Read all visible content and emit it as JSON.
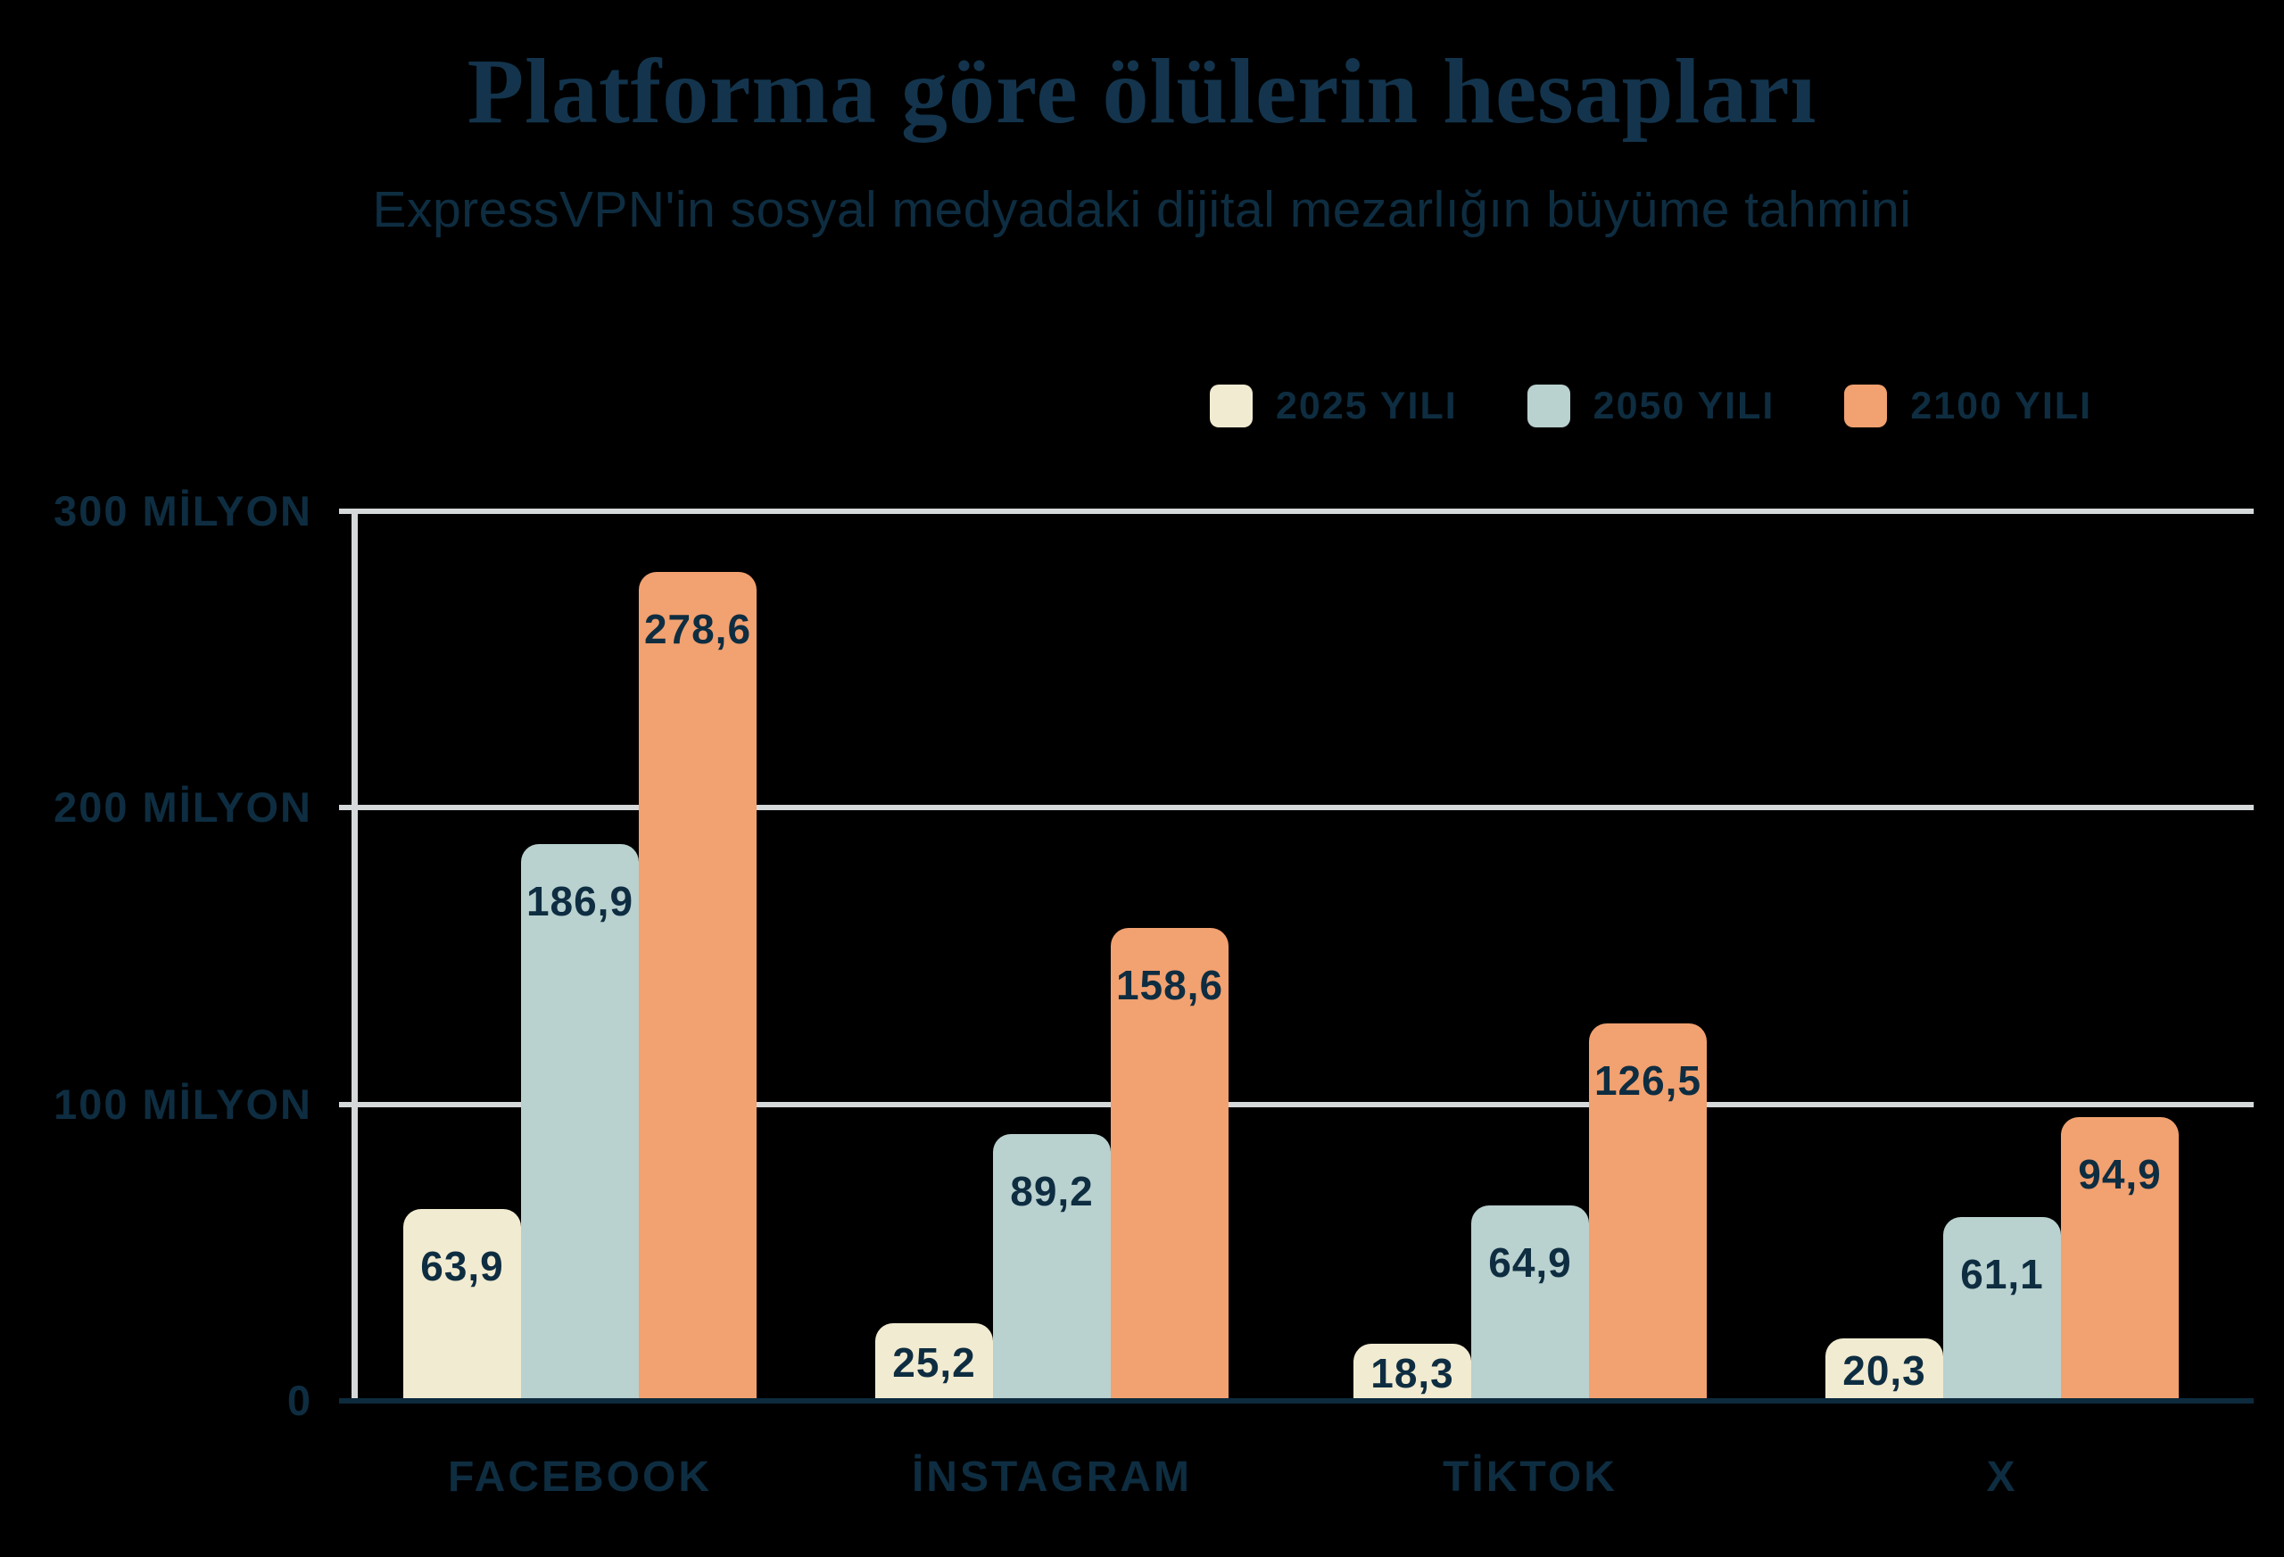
{
  "colors": {
    "background": "#000000",
    "title_navy": "#13344c",
    "text_navy": "#0e2d41",
    "gridline_gray": "#d6d9da",
    "baseline_navy": "#0d2b3d",
    "series_cream": "#f1ebd1",
    "series_blue": "#b9d1cf",
    "series_orange": "#f2a170"
  },
  "chart_data": {
    "type": "bar",
    "title": "Platforma göre ölülerin hesapları",
    "subtitle": "ExpressVPN'in sosyal medyadaki dijital mezarlığın büyüme tahmini",
    "categories": [
      "FACEBOOK",
      "İNSTAGRAM",
      "TİKTOK",
      "X"
    ],
    "series": [
      {
        "name": "2025 YILI",
        "color": "#f1ebd1",
        "values": [
          63.9,
          25.2,
          18.3,
          20.3
        ],
        "value_labels": [
          "63,9",
          "25,2",
          "18,3",
          "20,3"
        ]
      },
      {
        "name": "2050 YILI",
        "color": "#b9d1cf",
        "values": [
          186.9,
          89.2,
          64.9,
          61.1
        ],
        "value_labels": [
          "186,9",
          "89,2",
          "64,9",
          "61,1"
        ]
      },
      {
        "name": "2100 YILI",
        "color": "#f2a170",
        "values": [
          278.6,
          158.6,
          126.5,
          94.9
        ],
        "value_labels": [
          "278,6",
          "158,6",
          "126,5",
          "94,9"
        ]
      }
    ],
    "y_axis": {
      "min": 0,
      "max": 300,
      "ticks": [
        {
          "value": 0,
          "label": "0"
        },
        {
          "value": 100,
          "label": "100 MİLYON"
        },
        {
          "value": 200,
          "label": "200 MİLYON"
        },
        {
          "value": 300,
          "label": "300 MİLYON"
        }
      ]
    },
    "legend_position": "top-right",
    "grid": true,
    "unit": "MİLYON"
  }
}
